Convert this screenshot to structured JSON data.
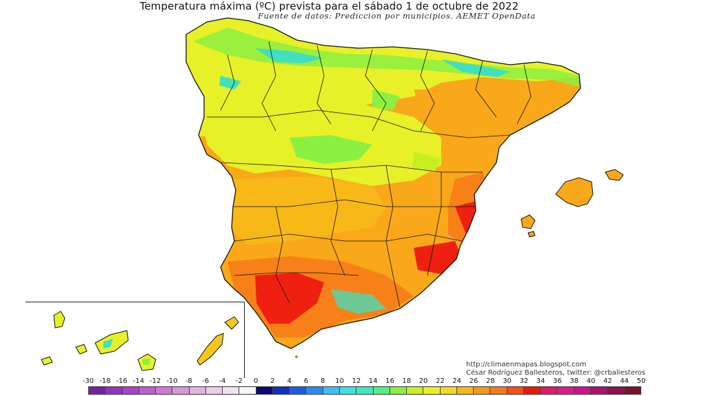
{
  "header": {
    "title": "Temperatura máxima (ºC) prevista para el sábado 1 de octubre de 2022",
    "subtitle": "Fuente de datos: Prediccion por municipios. AEMET OpenData"
  },
  "credits": {
    "url": "http://climaenmapas.blogspot.com",
    "author": "César Rodríguez Ballesteros, twitter: @crballesteros"
  },
  "legend": {
    "ticks": [
      "-30",
      "-18",
      "-16",
      "-14",
      "-12",
      "-10",
      "-8",
      "-6",
      "-4",
      "-2",
      "0",
      "2",
      "4",
      "6",
      "8",
      "10",
      "12",
      "14",
      "16",
      "18",
      "20",
      "22",
      "24",
      "26",
      "28",
      "30",
      "32",
      "34",
      "36",
      "38",
      "40",
      "42",
      "44",
      "50"
    ],
    "colors": [
      "#7a1fa2",
      "#9b30c0",
      "#b341c8",
      "#c35bd2",
      "#cf78d6",
      "#d996d8",
      "#e2b3e0",
      "#ebcdea",
      "#f2e3f2",
      "#f7f3f8",
      "#0a0a78",
      "#1030c0",
      "#1a5ee8",
      "#2a8ef0",
      "#3ec0f5",
      "#3ee0e6",
      "#40e8c0",
      "#50f088",
      "#8cf040",
      "#c8f020",
      "#f0f020",
      "#f8d818",
      "#f8b818",
      "#f89818",
      "#f87818",
      "#f85010",
      "#f01808",
      "#e81868",
      "#e01890",
      "#d01090",
      "#b01070",
      "#901050",
      "#801030"
    ]
  },
  "regions": {
    "colors": {
      "yellow": "#e8f028",
      "yellow_green": "#c8f020",
      "green": "#8cf040",
      "cyan": "#40e0c0",
      "light_orange": "#f8c818",
      "orange": "#f8a818",
      "dark_orange": "#f88018",
      "red": "#f02010",
      "outline": "#111111"
    }
  }
}
